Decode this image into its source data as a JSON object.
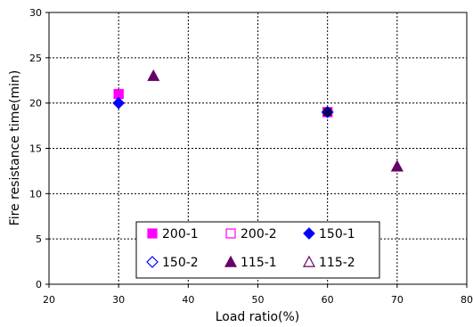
{
  "chart_data": {
    "type": "scatter",
    "xlabel": "Load ratio(%)",
    "ylabel": "Fire resistance time(min)",
    "xlim": [
      20,
      80
    ],
    "ylim": [
      0,
      30
    ],
    "xticks": [
      20,
      30,
      40,
      50,
      60,
      70,
      80
    ],
    "yticks": [
      0,
      5,
      10,
      15,
      20,
      25,
      30
    ],
    "grid": true,
    "legend_position": "bottom-center",
    "series": [
      {
        "name": "200-1",
        "marker": "square",
        "filled": true,
        "color": "#ff00ff",
        "points": [
          {
            "x": 30,
            "y": 21
          },
          {
            "x": 60,
            "y": 19
          }
        ]
      },
      {
        "name": "200-2",
        "marker": "square",
        "filled": false,
        "color": "#ff00ff",
        "points": [
          {
            "x": 30,
            "y": 21
          },
          {
            "x": 60,
            "y": 19
          }
        ]
      },
      {
        "name": "150-1",
        "marker": "diamond",
        "filled": true,
        "color": "#0000ff",
        "points": [
          {
            "x": 30,
            "y": 20
          },
          {
            "x": 60,
            "y": 19
          }
        ]
      },
      {
        "name": "150-2",
        "marker": "diamond",
        "filled": false,
        "color": "#0000ff",
        "points": [
          {
            "x": 60,
            "y": 19
          }
        ]
      },
      {
        "name": "115-1",
        "marker": "triangle",
        "filled": true,
        "color": "#660066",
        "points": [
          {
            "x": 35,
            "y": 23
          },
          {
            "x": 70,
            "y": 13
          }
        ]
      },
      {
        "name": "115-2",
        "marker": "triangle",
        "filled": false,
        "color": "#660066",
        "points": [
          {
            "x": 70,
            "y": 13
          }
        ]
      }
    ],
    "extra_marks": [
      {
        "marker": "circle",
        "filled": false,
        "color": "#000000",
        "x": 60,
        "y": 19
      },
      {
        "marker": "cross",
        "color": "#000000",
        "x": 60,
        "y": 19
      }
    ]
  }
}
